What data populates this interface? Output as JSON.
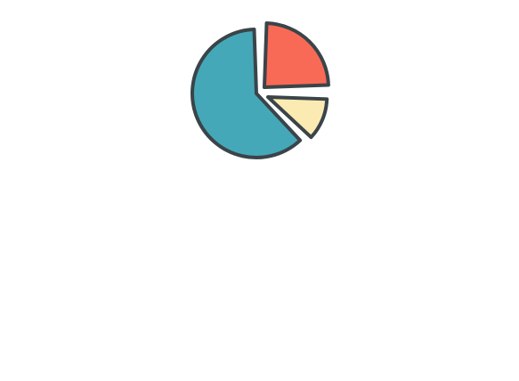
{
  "icon": {
    "name": "pie-chart-icon",
    "slices": [
      {
        "name": "large-slice",
        "fraction": 0.625,
        "color": "#45a8b8",
        "exploded": false
      },
      {
        "name": "top-right-slice",
        "fraction": 0.25,
        "color": "#f96a56",
        "exploded": true
      },
      {
        "name": "small-slice",
        "fraction": 0.125,
        "color": "#fbebb2",
        "exploded": true
      }
    ],
    "outline_color": "#3a4449",
    "background": "#ffffff"
  }
}
